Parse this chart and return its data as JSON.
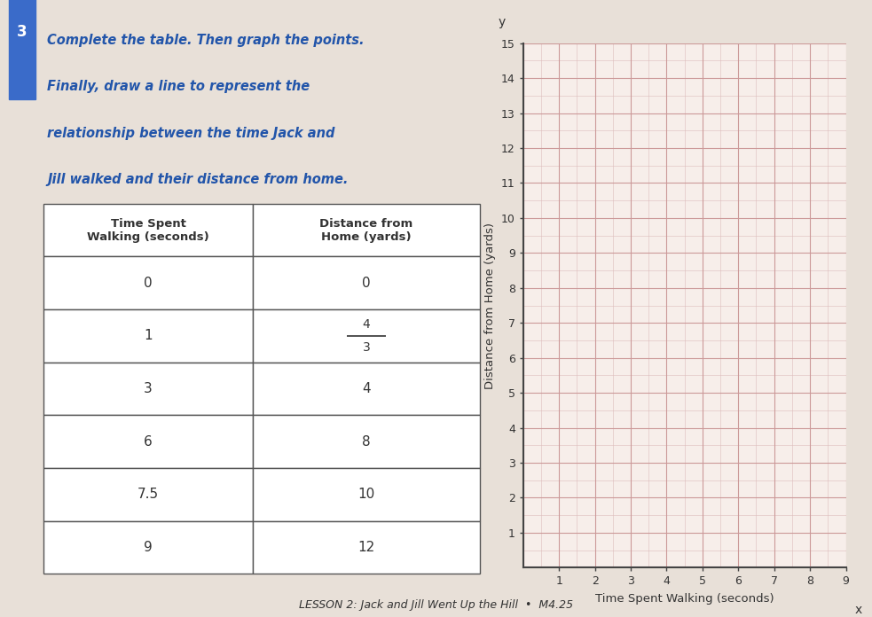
{
  "title_line1": "Complete the table. Then graph the points.",
  "title_line2": "Finally, draw a line to represent the",
  "title_line3": "relationship between the time Jack and",
  "title_line4": "Jill walked and their distance from home.",
  "lesson_label": "LESSON 2: Jack and Jill Went Up the Hill  •  M4.25",
  "problem_number": "3",
  "table_col1_header": "Time Spent\nWalking (seconds)",
  "table_col2_header": "Distance from\nHome (yards)",
  "table_time_labels": [
    "0",
    "1",
    "3",
    "6",
    "7.5",
    "9"
  ],
  "table_distance_labels": [
    "0",
    "4/3",
    "4",
    "8",
    "10",
    "12"
  ],
  "xlabel": "Time Spent Walking (seconds)",
  "ylabel": "Distance from Home (yards)",
  "x_label_axis": "x",
  "y_label_axis": "y",
  "xlim": [
    0,
    9
  ],
  "ylim": [
    0,
    15
  ],
  "xticks": [
    1,
    2,
    3,
    4,
    5,
    6,
    7,
    8,
    9
  ],
  "yticks": [
    1,
    2,
    3,
    4,
    5,
    6,
    7,
    8,
    9,
    10,
    11,
    12,
    13,
    14,
    15
  ],
  "grid_minor_color": "#ddbcbc",
  "grid_major_color": "#cc9999",
  "bg_color": "#f7eeea",
  "text_color_blue": "#2255aa",
  "text_color_dark": "#333333",
  "axis_color": "#444444",
  "table_border_color": "#555555",
  "page_bg": "#e8e0d8",
  "badge_color": "#3a6bc9"
}
